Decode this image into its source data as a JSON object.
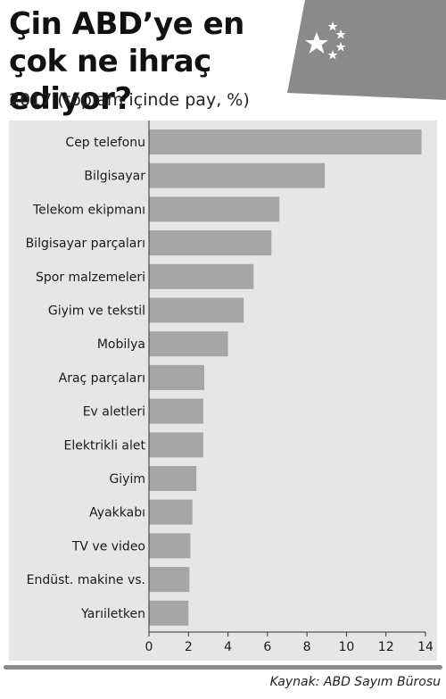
{
  "header": {
    "title": "Çin ABD’ye en çok ne ihraç ediyor?",
    "subtitle": "2017 (toplam içinde pay, %)"
  },
  "flag": {
    "icon": "china-flag-icon",
    "colors": {
      "field": "#888888",
      "stars": "#ffffff"
    }
  },
  "colors": {
    "bar": "#a6a6a6",
    "panel": "#e6e6e6",
    "axis": "#333333"
  },
  "chart_data": {
    "type": "bar",
    "orientation": "horizontal",
    "title": "Çin ABD’ye en çok ne ihraç ediyor?",
    "subtitle": "2017 (toplam içinde pay, %)",
    "categories": [
      "Cep telefonu",
      "Bilgisayar",
      "Telekom ekipmanı",
      "Bilgisayar parçaları",
      "Spor malzemeleri",
      "Giyim ve tekstil",
      "Mobilya",
      "Araç parçaları",
      "Ev aletleri",
      "Elektrikli alet",
      "Giyim",
      "Ayakkabı",
      "TV ve video",
      "Endüst. makine vs.",
      "Yarıiletken"
    ],
    "values": [
      13.8,
      8.9,
      6.6,
      6.2,
      5.3,
      4.8,
      4.0,
      2.8,
      2.75,
      2.75,
      2.4,
      2.2,
      2.1,
      2.05,
      2.0
    ],
    "xlim": [
      0,
      14
    ],
    "xticks": [
      0,
      2,
      4,
      6,
      8,
      10,
      12,
      14
    ],
    "grid": false
  },
  "footer": {
    "source": "Kaynak: ABD Sayım Bürosu"
  }
}
